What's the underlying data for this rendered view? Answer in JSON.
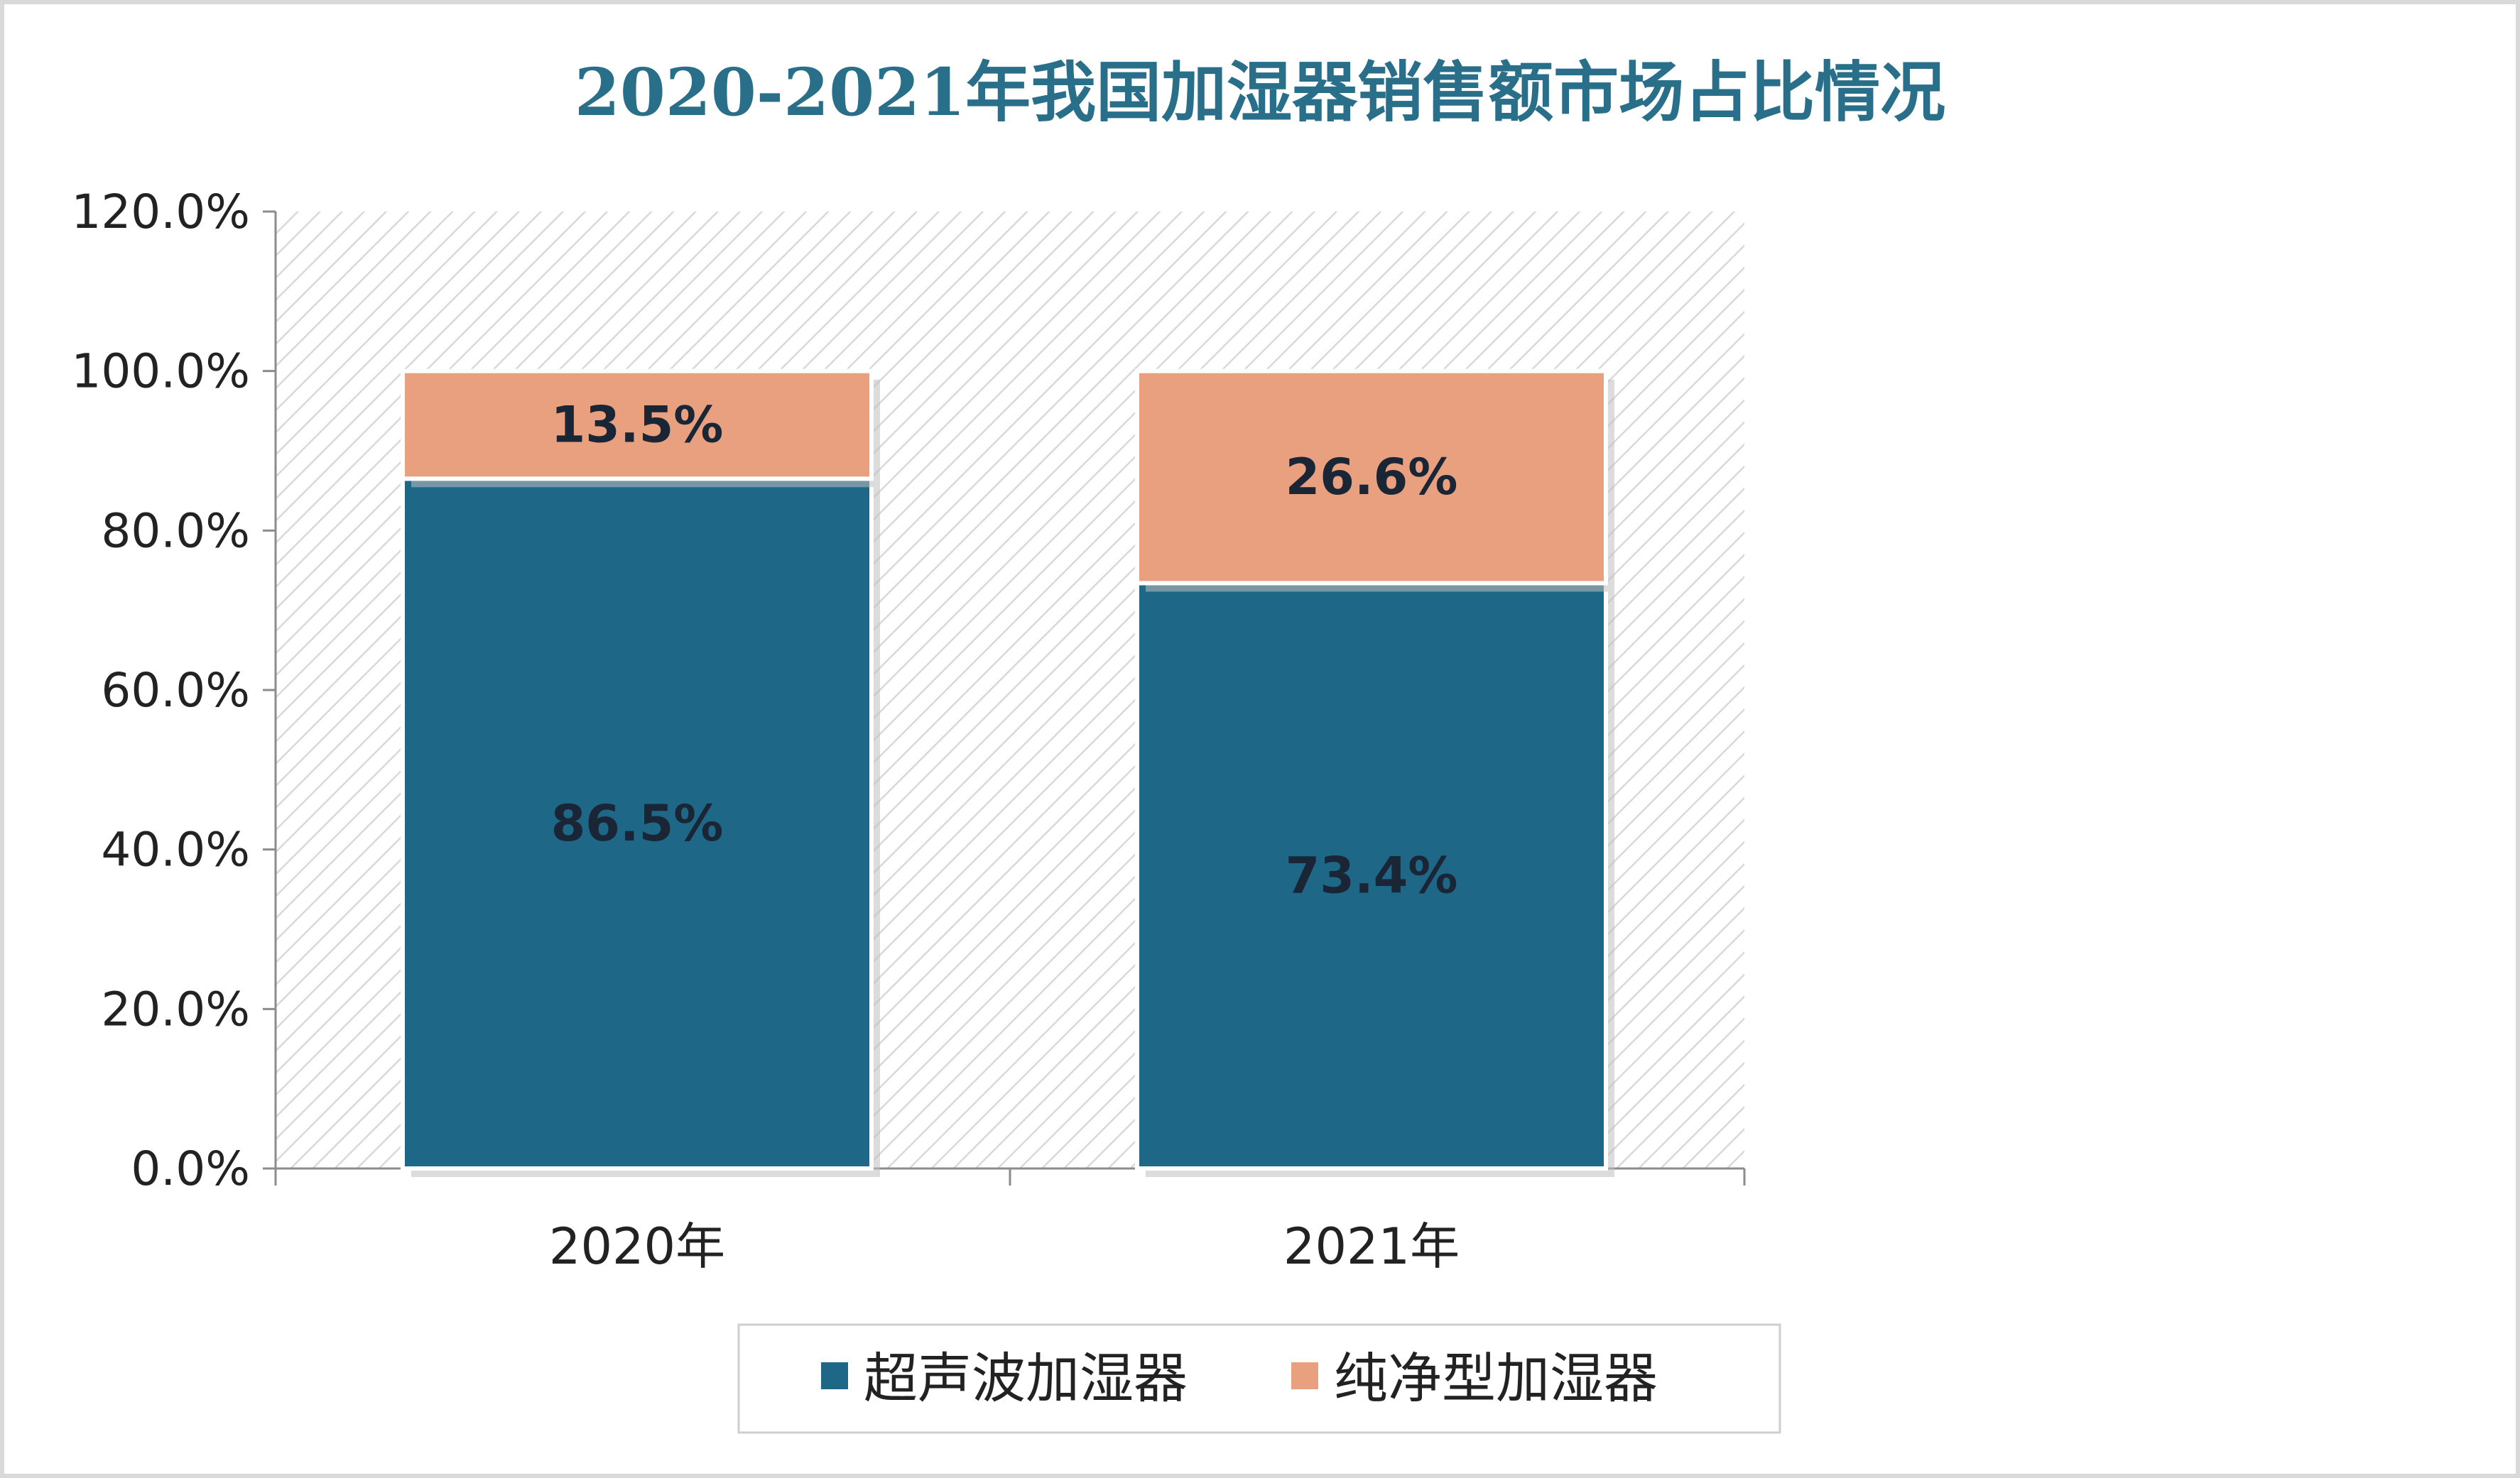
{
  "chart_data": {
    "type": "bar",
    "stacked": true,
    "title": "2020-2021年我国加湿器销售额市场占比情况",
    "categories": [
      "2020年",
      "2021年"
    ],
    "series": [
      {
        "name": "超声波加湿器",
        "values": [
          86.5,
          73.4
        ],
        "labels": [
          "86.5%",
          "73.4%"
        ]
      },
      {
        "name": "纯净型加湿器",
        "values": [
          13.5,
          26.6
        ],
        "labels": [
          "13.5%",
          "26.6%"
        ]
      }
    ],
    "ylim": [
      0,
      120
    ],
    "yticks": [
      "0.0%",
      "20.0%",
      "40.0%",
      "60.0%",
      "80.0%",
      "100.0%",
      "120.0%"
    ],
    "ytick_values": [
      0,
      20,
      40,
      60,
      80,
      100,
      120
    ],
    "legend_position": "bottom",
    "plot_background": "hatched",
    "grid": false
  },
  "colors": {
    "series": [
      "#1f6786",
      "#e9a07f"
    ],
    "title": "#2a6f8a",
    "hatch": "#d9d9d9"
  }
}
